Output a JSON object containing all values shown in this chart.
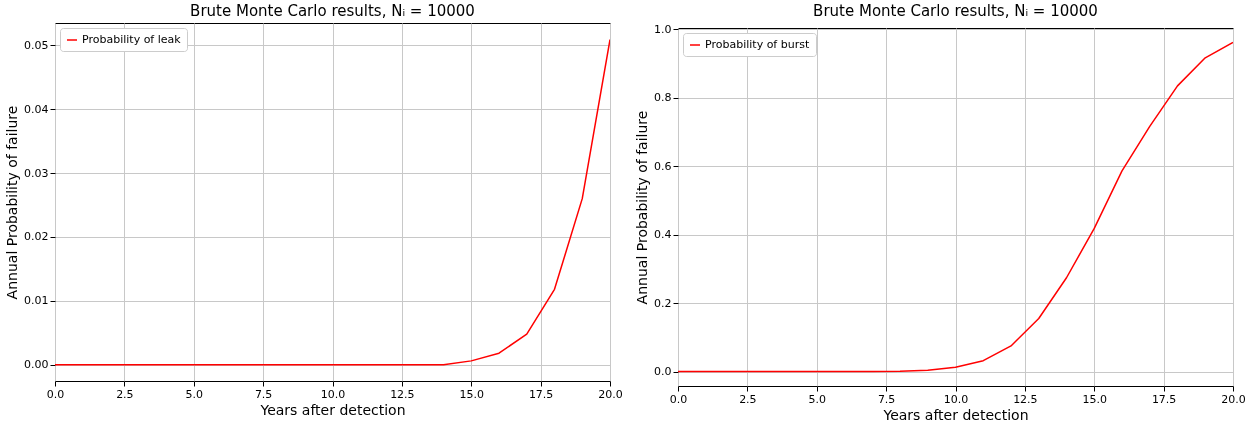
{
  "chart_data": [
    {
      "type": "line",
      "title": "Brute Monte Carlo results, Nᵢ = 10000",
      "xlabel": "Years after detection",
      "ylabel": "Annual Probability of failure",
      "x": [
        0,
        1,
        2,
        3,
        4,
        5,
        6,
        7,
        8,
        9,
        10,
        11,
        12,
        13,
        14,
        15,
        16,
        17,
        18,
        19,
        20
      ],
      "series": [
        {
          "name": "Probability of leak",
          "color": "#ff0000",
          "values": [
            0,
            0,
            0,
            0,
            0,
            0,
            0,
            0,
            0,
            0,
            0,
            0,
            0,
            0,
            0,
            0.0006,
            0.0018,
            0.0048,
            0.0118,
            0.026,
            0.0509
          ]
        }
      ],
      "xlim": [
        0,
        20
      ],
      "ylim": [
        -0.00255,
        0.0535
      ],
      "xticks": [
        {
          "value": 0,
          "label": "0.0"
        },
        {
          "value": 2.5,
          "label": "2.5"
        },
        {
          "value": 5,
          "label": "5.0"
        },
        {
          "value": 7.5,
          "label": "7.5"
        },
        {
          "value": 10,
          "label": "10.0"
        },
        {
          "value": 12.5,
          "label": "12.5"
        },
        {
          "value": 15,
          "label": "15.0"
        },
        {
          "value": 17.5,
          "label": "17.5"
        },
        {
          "value": 20,
          "label": "20.0"
        }
      ],
      "yticks": [
        {
          "value": 0,
          "label": "0.00"
        },
        {
          "value": 0.01,
          "label": "0.01"
        },
        {
          "value": 0.02,
          "label": "0.02"
        },
        {
          "value": 0.03,
          "label": "0.03"
        },
        {
          "value": 0.04,
          "label": "0.04"
        },
        {
          "value": 0.05,
          "label": "0.05"
        }
      ],
      "grid": true,
      "legend": "top left"
    },
    {
      "type": "line",
      "title": "Brute Monte Carlo results, Nᵢ = 10000",
      "xlabel": "Years after detection",
      "ylabel": "Annual Probability of failure",
      "x": [
        0,
        1,
        2,
        3,
        4,
        5,
        6,
        7,
        8,
        9,
        10,
        11,
        12,
        13,
        14,
        15,
        16,
        17,
        18,
        19,
        20
      ],
      "series": [
        {
          "name": "Probability of burst",
          "color": "#ff0000",
          "values": [
            0,
            0,
            0,
            0,
            0,
            0,
            0,
            0,
            0.001,
            0.004,
            0.013,
            0.032,
            0.075,
            0.155,
            0.274,
            0.418,
            0.586,
            0.716,
            0.834,
            0.916,
            0.961
          ]
        }
      ],
      "xlim": [
        0,
        20
      ],
      "ylim": [
        -0.042,
        1.003
      ],
      "xticks": [
        {
          "value": 0,
          "label": "0.0"
        },
        {
          "value": 2.5,
          "label": "2.5"
        },
        {
          "value": 5,
          "label": "5.0"
        },
        {
          "value": 7.5,
          "label": "7.5"
        },
        {
          "value": 10,
          "label": "10.0"
        },
        {
          "value": 12.5,
          "label": "12.5"
        },
        {
          "value": 15,
          "label": "15.0"
        },
        {
          "value": 17.5,
          "label": "17.5"
        },
        {
          "value": 20,
          "label": "20.0"
        }
      ],
      "yticks": [
        {
          "value": 0,
          "label": "0.0"
        },
        {
          "value": 0.2,
          "label": "0.2"
        },
        {
          "value": 0.4,
          "label": "0.4"
        },
        {
          "value": 0.6,
          "label": "0.6"
        },
        {
          "value": 0.8,
          "label": "0.8"
        },
        {
          "value": 1,
          "label": "1.0"
        }
      ],
      "grid": true,
      "legend": "top left"
    }
  ]
}
